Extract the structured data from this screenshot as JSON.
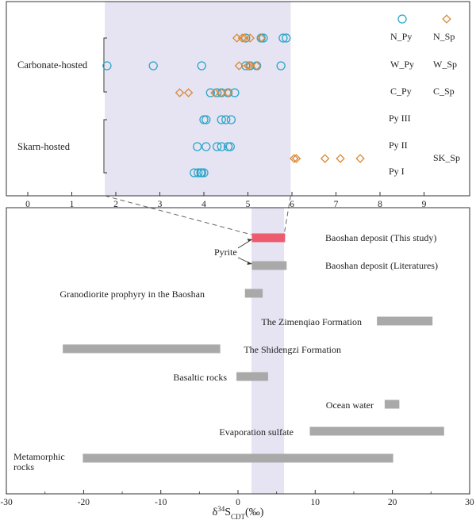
{
  "chart_data": [
    {
      "type": "scatter",
      "panel": "top",
      "xlim": [
        0,
        10
      ],
      "x_ticks": [
        0,
        1,
        2,
        3,
        4,
        5,
        6,
        7,
        8,
        9
      ],
      "shaded_range": [
        1.75,
        5.97
      ],
      "groups": [
        {
          "name": "Carbonate-hosted",
          "rows": [
            "N",
            "W",
            "C"
          ]
        },
        {
          "name": "Skarn-hosted",
          "rows": [
            "PyIII",
            "PyII",
            "PyI"
          ]
        }
      ],
      "legend": [
        {
          "label": "",
          "marker": "circle",
          "color": "#2aa6c8"
        },
        {
          "label": "",
          "marker": "diamond",
          "color": "#d9893a"
        }
      ],
      "series": [
        {
          "name": "N_Py",
          "row": "N",
          "marker": "circle",
          "color": "#2aa6c8",
          "values": [
            4.95,
            5.3,
            5.35,
            5.8,
            5.87
          ]
        },
        {
          "name": "N_Sp",
          "row": "N",
          "marker": "diamond",
          "color": "#d9893a",
          "values": [
            4.75,
            4.87,
            4.92,
            5.05,
            5.3
          ]
        },
        {
          "name": "W_Py",
          "row": "W",
          "marker": "circle",
          "color": "#2aa6c8",
          "values": [
            1.8,
            2.85,
            3.95,
            4.95,
            5.05,
            5.2,
            5.75
          ]
        },
        {
          "name": "W_Sp",
          "row": "W",
          "marker": "diamond",
          "color": "#d9893a",
          "values": [
            4.8,
            5.0,
            5.05,
            5.2
          ]
        },
        {
          "name": "C_Py",
          "row": "C",
          "marker": "circle",
          "color": "#2aa6c8",
          "values": [
            4.15,
            4.3,
            4.4,
            4.55,
            4.7
          ]
        },
        {
          "name": "C_Sp",
          "row": "C",
          "marker": "diamond",
          "color": "#d9893a",
          "values": [
            3.45,
            3.65,
            4.25,
            4.4,
            4.55
          ]
        },
        {
          "name": "Py III",
          "row": "PyIII",
          "marker": "circle",
          "color": "#2aa6c8",
          "values": [
            4.0,
            4.05,
            4.4,
            4.5,
            4.62
          ]
        },
        {
          "name": "Py II",
          "row": "PyII",
          "marker": "circle",
          "color": "#2aa6c8",
          "values": [
            3.85,
            4.05,
            4.3,
            4.4,
            4.55,
            4.6
          ]
        },
        {
          "name": "Py I",
          "row": "PyI",
          "marker": "circle",
          "color": "#2aa6c8",
          "values": [
            3.78,
            3.87,
            3.93,
            3.95,
            4.0
          ]
        },
        {
          "name": "SK_Sp",
          "row": "SK",
          "marker": "diamond",
          "color": "#d9893a",
          "values": [
            6.05,
            6.1,
            6.75,
            7.1,
            7.55
          ]
        }
      ]
    },
    {
      "type": "bar",
      "panel": "bottom",
      "orientation": "horizontal-range",
      "xlim": [
        -30,
        30
      ],
      "x_ticks": [
        -30,
        -20,
        -10,
        0,
        10,
        20,
        30
      ],
      "xlabel_main": "δ",
      "xlabel_sup": "34",
      "xlabel_sub": "CDT",
      "xlabel_unit": "(‰)",
      "shaded_range": [
        1.75,
        5.97
      ],
      "annotation": "Pyrite",
      "bars": [
        {
          "label": "Baoshan deposit (This study)",
          "range": [
            1.8,
            6.1
          ],
          "color": "#ec5b6e"
        },
        {
          "label": "Baoshan deposit (Literatures)",
          "range": [
            1.8,
            6.3
          ],
          "color": "#a9a9a9"
        },
        {
          "label": "Granodiorite prophyry in the Baoshan",
          "range": [
            0.9,
            3.2
          ],
          "color": "#a9a9a9"
        },
        {
          "label": "The Zimenqiao Formation",
          "range": [
            18.0,
            25.2
          ],
          "color": "#a9a9a9"
        },
        {
          "label": "The Shidengzi Formation",
          "range": [
            -22.7,
            -2.3
          ],
          "color": "#a9a9a9"
        },
        {
          "label": "Basaltic rocks",
          "range": [
            -0.2,
            3.9
          ],
          "color": "#a9a9a9"
        },
        {
          "label": "Ocean water",
          "range": [
            19.0,
            20.9
          ],
          "color": "#a9a9a9"
        },
        {
          "label": "Evaporation sulfate",
          "range": [
            9.3,
            26.7
          ],
          "color": "#a9a9a9"
        },
        {
          "label": [
            "Metamorphic",
            "rocks"
          ],
          "range": [
            -20.1,
            20.1
          ],
          "color": "#a9a9a9"
        }
      ]
    }
  ]
}
